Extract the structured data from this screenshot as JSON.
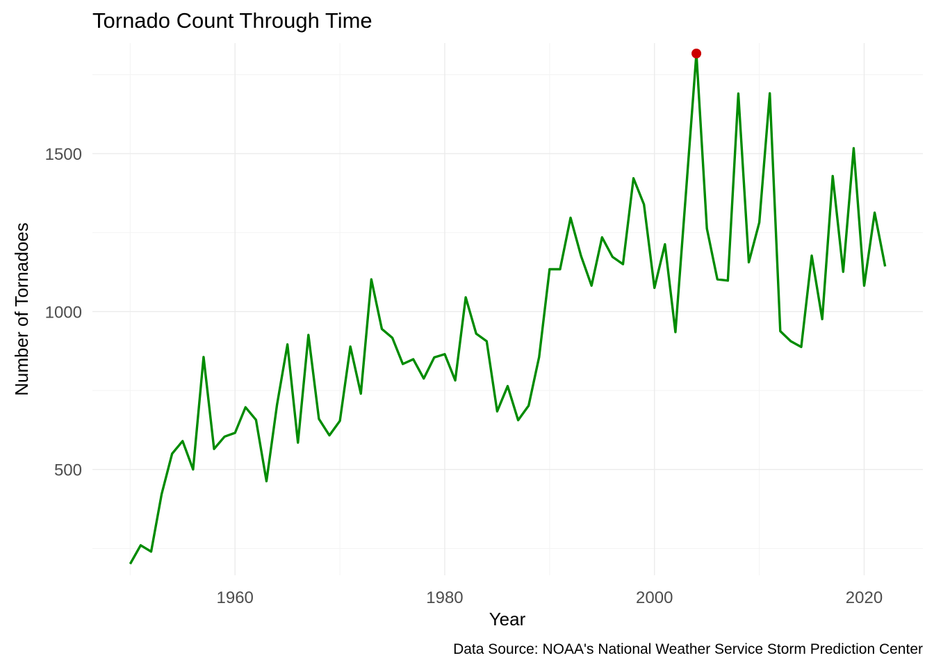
{
  "chart_data": {
    "type": "line",
    "title": "Tornado Count Through Time",
    "xlabel": "Year",
    "ylabel": "Number of Tornadoes",
    "caption": "Data Source: NOAA's National Weather Service Storm Prediction Center",
    "xlim": [
      1946.4,
      2025.6
    ],
    "ylim": [
      165,
      1850
    ],
    "x_ticks": [
      1960,
      1980,
      2000,
      2020
    ],
    "x_minor_ticks": [
      1950,
      1970,
      1990,
      2010
    ],
    "y_ticks": [
      500,
      1000,
      1500
    ],
    "y_minor_ticks": [
      250,
      750,
      1250,
      1750
    ],
    "grid": true,
    "legend": "none",
    "colors": {
      "line": "#008b00",
      "highlight": "#cc0000",
      "grid": "#ebebeb"
    },
    "series": [
      {
        "x": [
          1950,
          1951,
          1952,
          1953,
          1954,
          1955,
          1956,
          1957,
          1958,
          1959,
          1960,
          1961,
          1962,
          1963,
          1964,
          1965,
          1966,
          1967,
          1968,
          1969,
          1970,
          1971,
          1972,
          1973,
          1974,
          1975,
          1976,
          1977,
          1978,
          1979,
          1980,
          1981,
          1982,
          1983,
          1984,
          1985,
          1986,
          1987,
          1988,
          1989,
          1990,
          1991,
          1992,
          1993,
          1994,
          1995,
          1996,
          1997,
          1998,
          1999,
          2000,
          2001,
          2002,
          2003,
          2004,
          2005,
          2006,
          2007,
          2008,
          2009,
          2010,
          2011,
          2012,
          2013,
          2014,
          2015,
          2016,
          2017,
          2018,
          2019,
          2020,
          2021,
          2022
        ],
        "values": [
          201,
          260,
          240,
          422,
          550,
          590,
          500,
          856,
          565,
          604,
          616,
          697,
          657,
          463,
          704,
          896,
          585,
          926,
          660,
          608,
          654,
          889,
          740,
          1102,
          945,
          917,
          834,
          849,
          788,
          855,
          865,
          782,
          1045,
          930,
          906,
          684,
          764,
          656,
          702,
          856,
          1134,
          1134,
          1297,
          1176,
          1082,
          1235,
          1173,
          1150,
          1422,
          1339,
          1075,
          1213,
          935,
          1374,
          1817,
          1263,
          1102,
          1098,
          1690,
          1156,
          1282,
          1691,
          938,
          906,
          888,
          1177,
          976,
          1429,
          1126,
          1517,
          1082,
          1313,
          1143
        ]
      }
    ],
    "highlight": {
      "x": 2004,
      "y": 1817
    }
  }
}
